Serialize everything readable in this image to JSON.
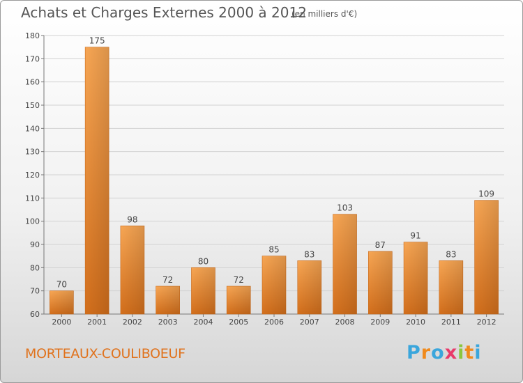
{
  "header": {
    "title": "Achats et Charges Externes 2000 à 2012",
    "subtitle": "(en milliers d'€)"
  },
  "footer": {
    "commune": "MORTEAUX-COULIBOEUF",
    "logo_letters": [
      "P",
      "r",
      "o",
      "x",
      "i",
      "t",
      "i"
    ],
    "logo_colors": [
      "#3aa6dc",
      "#f08a1c",
      "#3aa6dc",
      "#e83a6a",
      "#8cc63e",
      "#f08a1c",
      "#3aa6dc"
    ]
  },
  "chart_data": {
    "type": "bar",
    "categories": [
      "2000",
      "2001",
      "2002",
      "2003",
      "2004",
      "2005",
      "2006",
      "2007",
      "2008",
      "2009",
      "2010",
      "2011",
      "2012"
    ],
    "values": [
      70,
      175,
      98,
      72,
      80,
      72,
      85,
      83,
      103,
      87,
      91,
      83,
      109
    ],
    "ylim": [
      60,
      180
    ],
    "yticks": [
      60,
      70,
      80,
      90,
      100,
      110,
      120,
      130,
      140,
      150,
      160,
      170,
      180
    ],
    "grid": true,
    "bar_color": "#f09c46",
    "bar_color_dark": "#d9741f"
  }
}
